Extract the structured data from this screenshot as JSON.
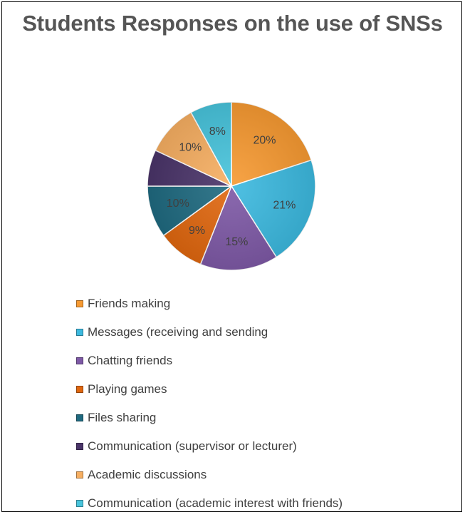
{
  "chart_data": {
    "type": "pie",
    "title": "Students Responses on the use of SNSs",
    "slices": [
      {
        "name": "Friends making",
        "value": 20,
        "label": "20%",
        "color": "#F79A32"
      },
      {
        "name": "Messages (receiving and sending",
        "value": 21,
        "label": "21%",
        "color": "#3CB9DF"
      },
      {
        "name": "Chatting friends",
        "value": 15,
        "label": "15%",
        "color": "#7E59A6"
      },
      {
        "name": "Playing  games",
        "value": 9,
        "label": "9%",
        "color": "#E0670F"
      },
      {
        "name": "Files sharing",
        "value": 10,
        "label": "10%",
        "color": "#1F6A80"
      },
      {
        "name": "Communication (supervisor or lecturer)",
        "value": 7,
        "label": "",
        "color": "#4A3469"
      },
      {
        "name": "Academic discussions",
        "value": 10,
        "label": "10%",
        "color": "#F7AF62"
      },
      {
        "name": "Communication (academic interest with friends)",
        "value": 8,
        "label": "8%",
        "color": "#48C4DC"
      }
    ],
    "legend_position": "bottom"
  }
}
